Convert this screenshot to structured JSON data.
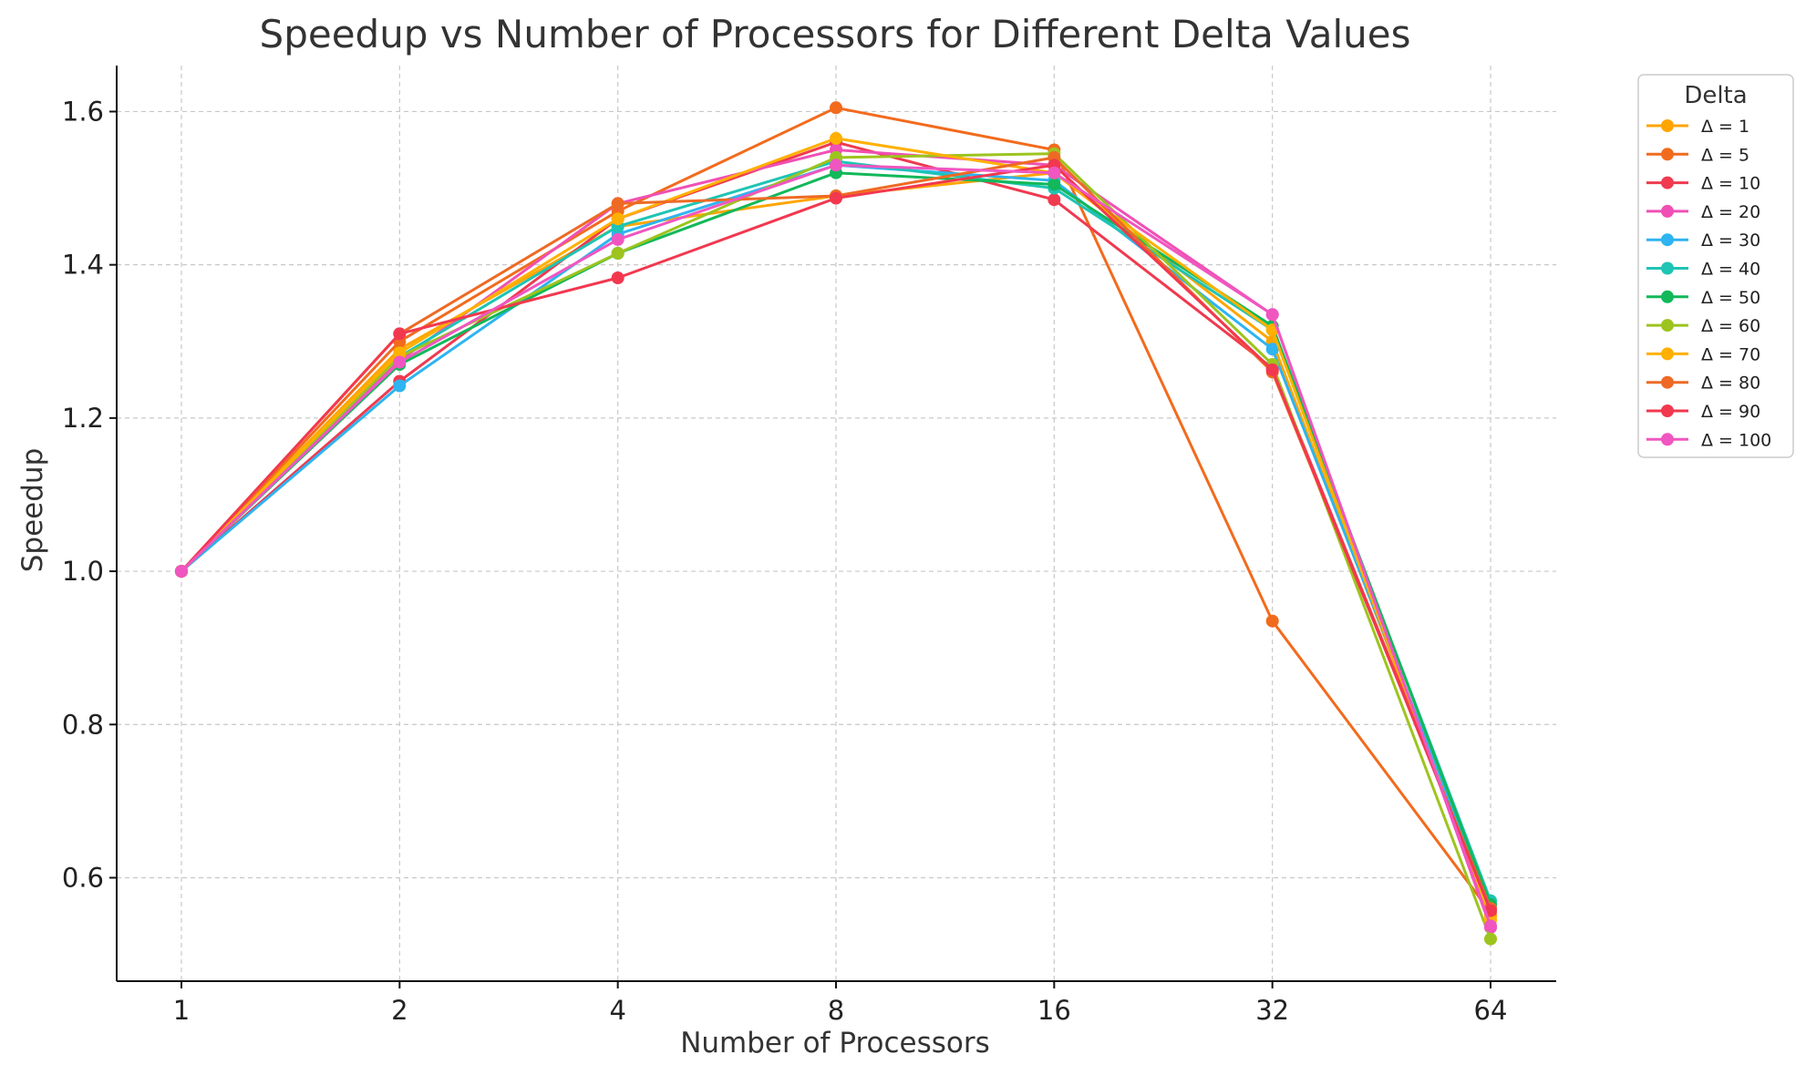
{
  "chart_data": {
    "type": "line",
    "title": "Speedup vs Number of Processors for Different Delta Values",
    "xlabel": "Number of Processors",
    "ylabel": "Speedup",
    "categories": [
      "1",
      "2",
      "4",
      "8",
      "16",
      "32",
      "64"
    ],
    "yticks": [
      "0.6",
      "0.8",
      "1.0",
      "1.2",
      "1.4",
      "1.6"
    ],
    "ylim": [
      0.465,
      1.66
    ],
    "grid": true,
    "legend": {
      "title": "Delta",
      "position": "outside-right"
    },
    "series": [
      {
        "name": "Δ = 1",
        "color": "#FFA500",
        "values": [
          1.0,
          1.29,
          1.45,
          1.49,
          1.52,
          1.3,
          0.55
        ]
      },
      {
        "name": "Δ = 5",
        "color": "#F26B1D",
        "values": [
          1.0,
          1.3,
          1.47,
          1.605,
          1.55,
          0.935,
          0.555
        ]
      },
      {
        "name": "Δ = 10",
        "color": "#F03A4F",
        "values": [
          1.0,
          1.248,
          1.46,
          1.56,
          1.485,
          1.265,
          0.56
        ]
      },
      {
        "name": "Δ = 20",
        "color": "#F050B4",
        "values": [
          1.0,
          1.275,
          1.48,
          1.55,
          1.53,
          1.335,
          0.535
        ]
      },
      {
        "name": "Δ = 30",
        "color": "#2EB4F0",
        "values": [
          1.0,
          1.242,
          1.44,
          1.53,
          1.51,
          1.29,
          0.565
        ]
      },
      {
        "name": "Δ = 40",
        "color": "#1EC4B4",
        "values": [
          1.0,
          1.28,
          1.45,
          1.535,
          1.5,
          1.315,
          0.57
        ]
      },
      {
        "name": "Δ = 50",
        "color": "#12B859",
        "values": [
          1.0,
          1.27,
          1.415,
          1.52,
          1.505,
          1.32,
          0.565
        ]
      },
      {
        "name": "Δ = 60",
        "color": "#9DC41E",
        "values": [
          1.0,
          1.28,
          1.415,
          1.54,
          1.545,
          1.27,
          0.52
        ]
      },
      {
        "name": "Δ = 70",
        "color": "#FFB000",
        "values": [
          1.0,
          1.285,
          1.46,
          1.565,
          1.52,
          1.315,
          0.545
        ]
      },
      {
        "name": "Δ = 80",
        "color": "#EE6A24",
        "values": [
          1.0,
          1.31,
          1.48,
          1.49,
          1.54,
          1.26,
          0.56
        ]
      },
      {
        "name": "Δ = 90",
        "color": "#F2384F",
        "values": [
          1.0,
          1.31,
          1.383,
          1.487,
          1.53,
          1.263,
          0.557
        ]
      },
      {
        "name": "Δ = 100",
        "color": "#F056C0",
        "values": [
          1.0,
          1.273,
          1.433,
          1.53,
          1.52,
          1.335,
          0.537
        ]
      }
    ]
  }
}
